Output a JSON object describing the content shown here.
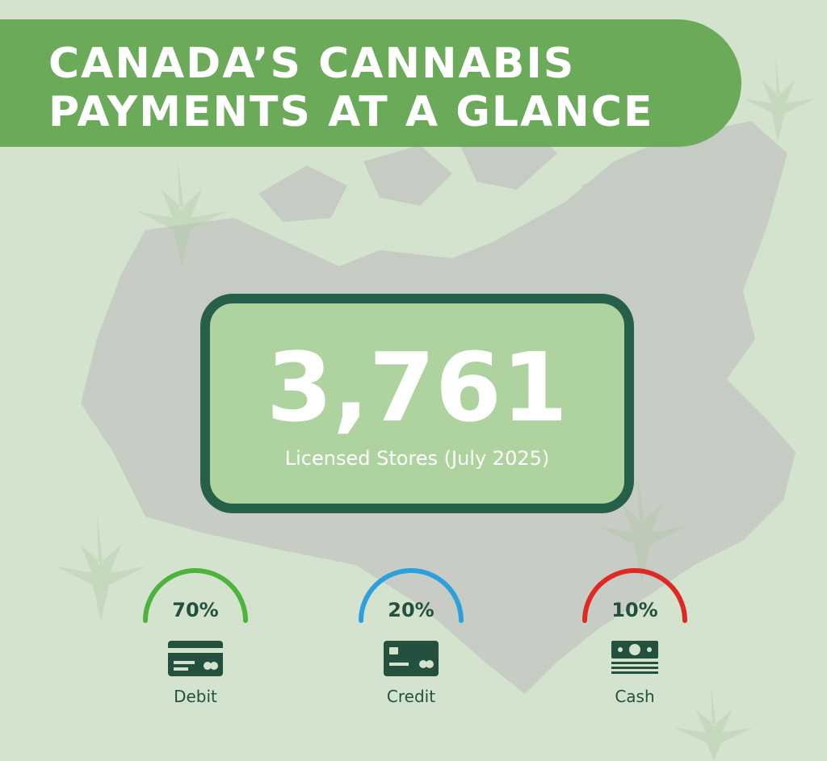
{
  "header": {
    "title_line1": "CANADA’S CANNABIS",
    "title_line2": "PAYMENTS AT A GLANCE"
  },
  "stat": {
    "value": "3,761",
    "label": "Licensed Stores (July 2025)"
  },
  "payments": [
    {
      "percent_text": "70%",
      "share": 0.7,
      "label": "Debit",
      "icon": "debit-card-icon",
      "color": "#4db33d"
    },
    {
      "percent_text": "20%",
      "share": 0.2,
      "label": "Credit",
      "icon": "credit-card-icon",
      "color": "#2d9fdc"
    },
    {
      "percent_text": "10%",
      "share": 0.1,
      "label": "Cash",
      "icon": "cash-icon",
      "color": "#dd2a24"
    }
  ],
  "colors": {
    "background": "#d3e3cd",
    "banner": "#6aaa58",
    "card_border": "#26604a",
    "icon": "#24513f"
  }
}
